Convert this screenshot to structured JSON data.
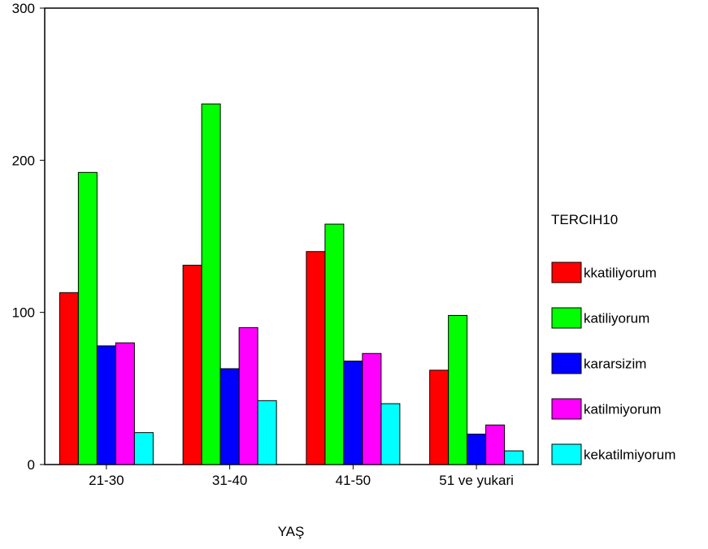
{
  "chart_data": {
    "type": "bar",
    "categories": [
      "21-30",
      "31-40",
      "41-50",
      "51 ve yukari"
    ],
    "series": [
      {
        "name": "kkatiliyorum",
        "color": "#ff0000",
        "values": [
          113,
          131,
          140,
          62
        ]
      },
      {
        "name": "katiliyorum",
        "color": "#00ff00",
        "values": [
          192,
          237,
          158,
          98
        ]
      },
      {
        "name": "kararsizim",
        "color": "#0000ff",
        "values": [
          78,
          63,
          68,
          20
        ]
      },
      {
        "name": "katilmiyorum",
        "color": "#ff00ff",
        "values": [
          80,
          90,
          73,
          26
        ]
      },
      {
        "name": "kekatilmiyorum",
        "color": "#00ffff",
        "values": [
          21,
          42,
          40,
          9
        ]
      }
    ],
    "xlabel": "YAŞ",
    "ylabel": "",
    "ylim": [
      0,
      300
    ],
    "yticks": [
      0,
      100,
      200,
      300
    ],
    "legend_title": "TERCIH10",
    "legend_position": "right",
    "grid": false
  }
}
